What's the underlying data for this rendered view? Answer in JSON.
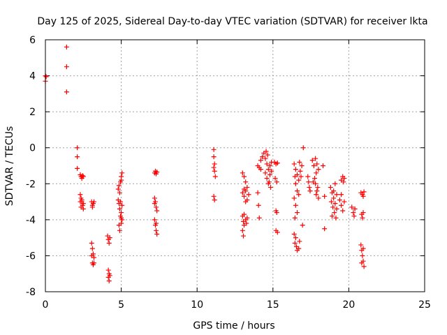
{
  "chart_data": {
    "type": "scatter",
    "title": "Day 125 of 2025, Sidereal Day-to-day VTEC variation (SDTVAR) for receiver lkta",
    "xlabel": "GPS time / hours",
    "ylabel": "SDTVAR / TECUs",
    "xlim": [
      0,
      25
    ],
    "ylim": [
      -8,
      6
    ],
    "xticks": [
      0,
      5,
      10,
      15,
      20,
      25
    ],
    "yticks": [
      -8,
      -6,
      -4,
      -2,
      0,
      2,
      4,
      6
    ],
    "grid": true,
    "marker": "+",
    "color": "#ff0000",
    "series": [
      {
        "name": "SDTVAR",
        "points": [
          [
            0.0,
            4.0
          ],
          [
            0.0,
            3.7
          ],
          [
            0.05,
            3.95
          ],
          [
            1.4,
            5.6
          ],
          [
            1.4,
            4.5
          ],
          [
            1.4,
            3.1
          ],
          [
            2.1,
            0.0
          ],
          [
            2.1,
            -0.5
          ],
          [
            2.1,
            -1.15
          ],
          [
            2.3,
            -1.5
          ],
          [
            2.35,
            -1.6
          ],
          [
            2.4,
            -1.7
          ],
          [
            2.45,
            -1.55
          ],
          [
            2.5,
            -1.6
          ],
          [
            2.3,
            -2.6
          ],
          [
            2.35,
            -2.8
          ],
          [
            2.4,
            -3.0
          ],
          [
            2.45,
            -3.2
          ],
          [
            2.5,
            -3.4
          ],
          [
            2.3,
            -3.0
          ],
          [
            2.4,
            -2.9
          ],
          [
            2.5,
            -3.1
          ],
          [
            2.35,
            -3.3
          ],
          [
            3.05,
            -3.0
          ],
          [
            3.1,
            -3.2
          ],
          [
            3.15,
            -3.1
          ],
          [
            3.2,
            -3.0
          ],
          [
            3.1,
            -3.3
          ],
          [
            3.05,
            -5.3
          ],
          [
            3.1,
            -5.6
          ],
          [
            3.15,
            -5.9
          ],
          [
            3.2,
            -6.1
          ],
          [
            3.1,
            -6.4
          ],
          [
            3.15,
            -6.5
          ],
          [
            3.2,
            -6.4
          ],
          [
            3.05,
            -6.0
          ],
          [
            4.1,
            -4.9
          ],
          [
            4.15,
            -5.1
          ],
          [
            4.2,
            -5.3
          ],
          [
            4.25,
            -5.0
          ],
          [
            4.15,
            -6.8
          ],
          [
            4.2,
            -7.0
          ],
          [
            4.15,
            -7.2
          ],
          [
            4.2,
            -7.4
          ],
          [
            4.25,
            -7.1
          ],
          [
            4.8,
            -2.3
          ],
          [
            4.85,
            -2.1
          ],
          [
            4.9,
            -2.5
          ],
          [
            4.95,
            -1.9
          ],
          [
            5.0,
            -1.6
          ],
          [
            5.05,
            -1.4
          ],
          [
            5.0,
            -1.8
          ],
          [
            4.8,
            -2.9
          ],
          [
            4.85,
            -3.1
          ],
          [
            4.9,
            -3.4
          ],
          [
            4.95,
            -3.8
          ],
          [
            5.0,
            -4.2
          ],
          [
            5.05,
            -4.0
          ],
          [
            4.9,
            -4.6
          ],
          [
            4.85,
            -4.3
          ],
          [
            5.0,
            -3.6
          ],
          [
            5.05,
            -3.2
          ],
          [
            4.95,
            -3.0
          ],
          [
            5.0,
            -3.9
          ],
          [
            7.2,
            -1.4
          ],
          [
            7.25,
            -1.3
          ],
          [
            7.3,
            -1.45
          ],
          [
            7.35,
            -1.35
          ],
          [
            7.2,
            -2.8
          ],
          [
            7.25,
            -3.0
          ],
          [
            7.3,
            -3.3
          ],
          [
            7.35,
            -3.5
          ],
          [
            7.2,
            -3.1
          ],
          [
            7.2,
            -4.0
          ],
          [
            7.25,
            -4.3
          ],
          [
            7.3,
            -4.6
          ],
          [
            7.35,
            -4.8
          ],
          [
            7.3,
            -4.2
          ],
          [
            11.1,
            -0.1
          ],
          [
            11.1,
            -0.5
          ],
          [
            11.15,
            -0.9
          ],
          [
            11.15,
            -1.3
          ],
          [
            11.2,
            -1.6
          ],
          [
            11.1,
            -1.1
          ],
          [
            11.1,
            -2.7
          ],
          [
            11.15,
            -2.9
          ],
          [
            13.0,
            -1.4
          ],
          [
            13.1,
            -1.6
          ],
          [
            13.2,
            -1.9
          ],
          [
            13.3,
            -2.2
          ],
          [
            13.0,
            -2.5
          ],
          [
            13.1,
            -2.7
          ],
          [
            13.2,
            -3.0
          ],
          [
            13.3,
            -2.9
          ],
          [
            13.4,
            -2.6
          ],
          [
            13.1,
            -2.3
          ],
          [
            13.2,
            -2.4
          ],
          [
            13.0,
            -3.8
          ],
          [
            13.05,
            -4.1
          ],
          [
            13.1,
            -4.3
          ],
          [
            13.0,
            -4.6
          ],
          [
            13.05,
            -4.9
          ],
          [
            13.2,
            -4.0
          ],
          [
            13.3,
            -3.9
          ],
          [
            13.1,
            -3.7
          ],
          [
            13.25,
            -4.2
          ],
          [
            14.0,
            -2.5
          ],
          [
            14.05,
            -3.2
          ],
          [
            14.1,
            -3.9
          ],
          [
            14.2,
            -0.7
          ],
          [
            14.3,
            -0.5
          ],
          [
            14.4,
            -0.3
          ],
          [
            14.1,
            -1.1
          ],
          [
            14.0,
            -1.0
          ],
          [
            14.2,
            -1.2
          ],
          [
            14.5,
            -0.6
          ],
          [
            14.6,
            -0.9
          ],
          [
            14.7,
            -1.2
          ],
          [
            14.8,
            -1.0
          ],
          [
            14.9,
            -0.8
          ],
          [
            14.5,
            -1.4
          ],
          [
            14.6,
            -1.7
          ],
          [
            14.7,
            -2.0
          ],
          [
            14.8,
            -1.5
          ],
          [
            14.9,
            -1.3
          ],
          [
            14.55,
            -0.2
          ],
          [
            14.65,
            -0.4
          ],
          [
            14.75,
            -1.9
          ],
          [
            14.85,
            -2.2
          ],
          [
            15.1,
            -0.8
          ],
          [
            15.2,
            -0.9
          ],
          [
            15.3,
            -0.85
          ],
          [
            15.15,
            -1.7
          ],
          [
            15.25,
            -1.9
          ],
          [
            15.2,
            -3.5
          ],
          [
            15.25,
            -3.6
          ],
          [
            15.2,
            -4.6
          ],
          [
            15.3,
            -4.7
          ],
          [
            16.4,
            -0.9
          ],
          [
            16.5,
            -1.2
          ],
          [
            16.6,
            -1.5
          ],
          [
            16.7,
            -1.8
          ],
          [
            16.8,
            -1.3
          ],
          [
            16.9,
            -1.0
          ],
          [
            16.5,
            -2.0
          ],
          [
            16.6,
            -2.4
          ],
          [
            16.7,
            -2.6
          ],
          [
            16.45,
            -1.6
          ],
          [
            16.75,
            -0.8
          ],
          [
            16.85,
            -1.6
          ],
          [
            16.4,
            -2.8
          ],
          [
            16.5,
            -3.2
          ],
          [
            16.6,
            -3.6
          ],
          [
            16.45,
            -3.9
          ],
          [
            16.4,
            -4.8
          ],
          [
            16.5,
            -5.0
          ],
          [
            16.45,
            -5.3
          ],
          [
            16.55,
            -5.5
          ],
          [
            16.6,
            -5.7
          ],
          [
            16.7,
            -5.6
          ],
          [
            16.75,
            -5.2
          ],
          [
            17.0,
            0.0
          ],
          [
            16.95,
            -4.3
          ],
          [
            17.3,
            -1.6
          ],
          [
            17.35,
            -1.9
          ],
          [
            17.4,
            -2.2
          ],
          [
            17.45,
            -2.4
          ],
          [
            17.6,
            -0.7
          ],
          [
            17.7,
            -1.0
          ],
          [
            17.8,
            -0.6
          ],
          [
            17.9,
            -0.9
          ],
          [
            18.0,
            -1.2
          ],
          [
            17.85,
            -1.4
          ],
          [
            17.75,
            -1.7
          ],
          [
            17.65,
            -1.9
          ],
          [
            17.8,
            -2.0
          ],
          [
            17.9,
            -2.4
          ],
          [
            18.0,
            -2.8
          ],
          [
            17.85,
            -2.6
          ],
          [
            17.95,
            -2.2
          ],
          [
            18.3,
            -1.0
          ],
          [
            18.4,
            -2.7
          ],
          [
            18.4,
            -4.5
          ],
          [
            18.8,
            -2.2
          ],
          [
            18.9,
            -2.5
          ],
          [
            19.0,
            -2.8
          ],
          [
            19.1,
            -3.1
          ],
          [
            19.2,
            -3.4
          ],
          [
            18.85,
            -3.0
          ],
          [
            18.95,
            -3.3
          ],
          [
            19.05,
            -3.6
          ],
          [
            19.15,
            -3.9
          ],
          [
            19.0,
            -2.4
          ],
          [
            19.1,
            -2.0
          ],
          [
            19.2,
            -2.6
          ],
          [
            18.9,
            -3.8
          ],
          [
            19.4,
            -2.9
          ],
          [
            19.5,
            -3.2
          ],
          [
            19.6,
            -3.5
          ],
          [
            19.7,
            -3.0
          ],
          [
            19.5,
            -2.6
          ],
          [
            19.5,
            -1.8
          ],
          [
            19.6,
            -1.6
          ],
          [
            19.7,
            -1.7
          ],
          [
            19.65,
            -1.9
          ],
          [
            20.2,
            -3.3
          ],
          [
            20.3,
            -3.6
          ],
          [
            20.4,
            -3.4
          ],
          [
            20.35,
            -3.8
          ],
          [
            20.8,
            -2.5
          ],
          [
            20.9,
            -2.6
          ],
          [
            21.0,
            -2.45
          ],
          [
            20.95,
            -2.7
          ],
          [
            20.85,
            -3.7
          ],
          [
            20.9,
            -3.9
          ],
          [
            20.95,
            -3.6
          ],
          [
            20.8,
            -5.4
          ],
          [
            20.85,
            -5.7
          ],
          [
            20.9,
            -6.0
          ],
          [
            20.95,
            -6.3
          ],
          [
            21.0,
            -6.6
          ],
          [
            20.85,
            -6.4
          ],
          [
            20.95,
            -5.6
          ]
        ]
      }
    ]
  }
}
